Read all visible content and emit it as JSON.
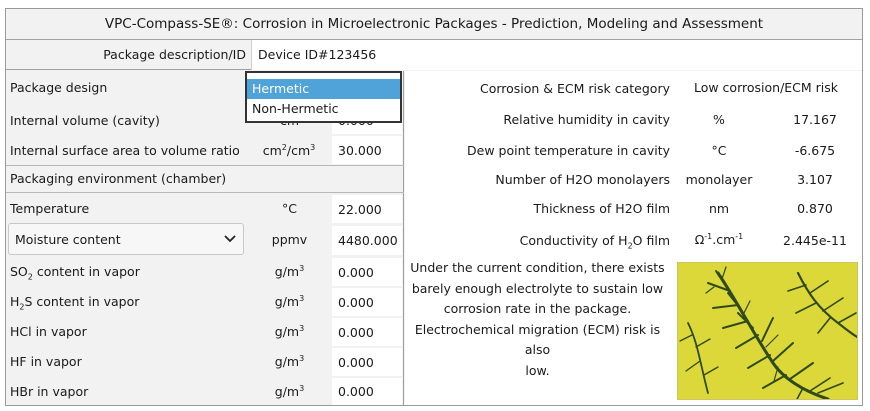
{
  "window": {
    "title": "VPC-Compass-SE®: Corrosion in Microelectronic Packages - Prediction, Modeling and Assessment"
  },
  "package": {
    "description_label": "Package description/ID",
    "description_value": "Device ID#123456"
  },
  "design": {
    "label": "Package design",
    "options": [
      "Hermetic",
      "Non-Hermetic"
    ],
    "selected": "Hermetic"
  },
  "cavity": {
    "volume_label": "Internal volume (cavity)",
    "volume_unit_partial": "cm",
    "volume_value_partial": "0.000",
    "ratio_label": "Internal surface area to volume ratio",
    "ratio_unit_base": "cm",
    "ratio_unit_sup1": "2",
    "ratio_unit_mid": "/cm",
    "ratio_unit_sup2": "3",
    "ratio_value": "30.000"
  },
  "environment": {
    "section_label": "Packaging environment (chamber)",
    "temperature_label": "Temperature",
    "temperature_unit": "°C",
    "temperature_value": "22.000",
    "moisture_select": "Moisture content",
    "moisture_unit": "ppmv",
    "moisture_value": "4480.000",
    "so2_pre": "SO",
    "so2_sub": "2",
    "so2_post": " content in vapor",
    "h2s_pre": "H",
    "h2s_sub": "2",
    "h2s_post": "S content in vapor",
    "hcl_label": "HCl in vapor",
    "hf_label": "HF in vapor",
    "hbr_label": "HBr in vapor",
    "gas_unit_base": "g/m",
    "gas_unit_sup": "3",
    "so2_value": "0.000",
    "h2s_value": "0.000",
    "hcl_value": "0.000",
    "hf_value": "0.000",
    "hbr_value": "0.000"
  },
  "results": {
    "risk_label": "Corrosion & ECM risk category",
    "risk_value": "Low corrosion/ECM risk",
    "rh_label": "Relative humidity in cavity",
    "rh_unit": "%",
    "rh_value": "17.167",
    "dew_label": "Dew point temperature in cavity",
    "dew_unit": "°C",
    "dew_value": "-6.675",
    "mono_label": "Number of H2O monolayers",
    "mono_unit": "monolayer",
    "mono_value": "3.107",
    "film_label": "Thickness of H2O film",
    "film_unit": "nm",
    "film_value": "0.870",
    "cond_pre": "Conductivity of H",
    "cond_sub": "2",
    "cond_post": "O film",
    "cond_unit_base": "Ω",
    "cond_unit_sup1": "-1",
    "cond_unit_mid": ".cm",
    "cond_unit_sup2": "-1",
    "cond_value": "2.445e-11"
  },
  "message": {
    "line1": "Under the current condition, there exists",
    "line2": "barely enough electrolyte to sustain low",
    "line3": "corrosion rate in the package.",
    "line4": "Electrochemical migration (ECM) risk is also",
    "line5": "low."
  },
  "colors": {
    "accent": "#4fa3d9",
    "panel": "#f2f2f2",
    "image_bg": "#dcd83a",
    "dendrite": "#2f4a1c"
  },
  "icons": {
    "select_arrow": "chevron-down-icon",
    "image": "dendrite-image"
  }
}
